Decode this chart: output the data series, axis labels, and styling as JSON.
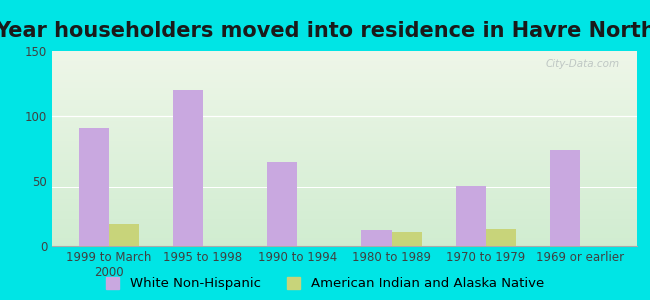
{
  "title": "Year householders moved into residence in Havre North",
  "categories": [
    "1999 to March\n2000",
    "1995 to 1998",
    "1990 to 1994",
    "1980 to 1989",
    "1970 to 1979",
    "1969 or earlier"
  ],
  "white_non_hispanic": [
    91,
    120,
    65,
    12,
    46,
    74
  ],
  "american_indian": [
    17,
    0,
    0,
    11,
    13,
    0
  ],
  "bar_color_white": "#c9a8e0",
  "bar_color_indian": "#c8d47a",
  "background_outer": "#00e5e5",
  "ylim": [
    0,
    150
  ],
  "yticks": [
    0,
    50,
    100,
    150
  ],
  "bar_width": 0.32,
  "title_fontsize": 15,
  "tick_fontsize": 8.5,
  "legend_fontsize": 9.5,
  "watermark": "City-Data.com"
}
